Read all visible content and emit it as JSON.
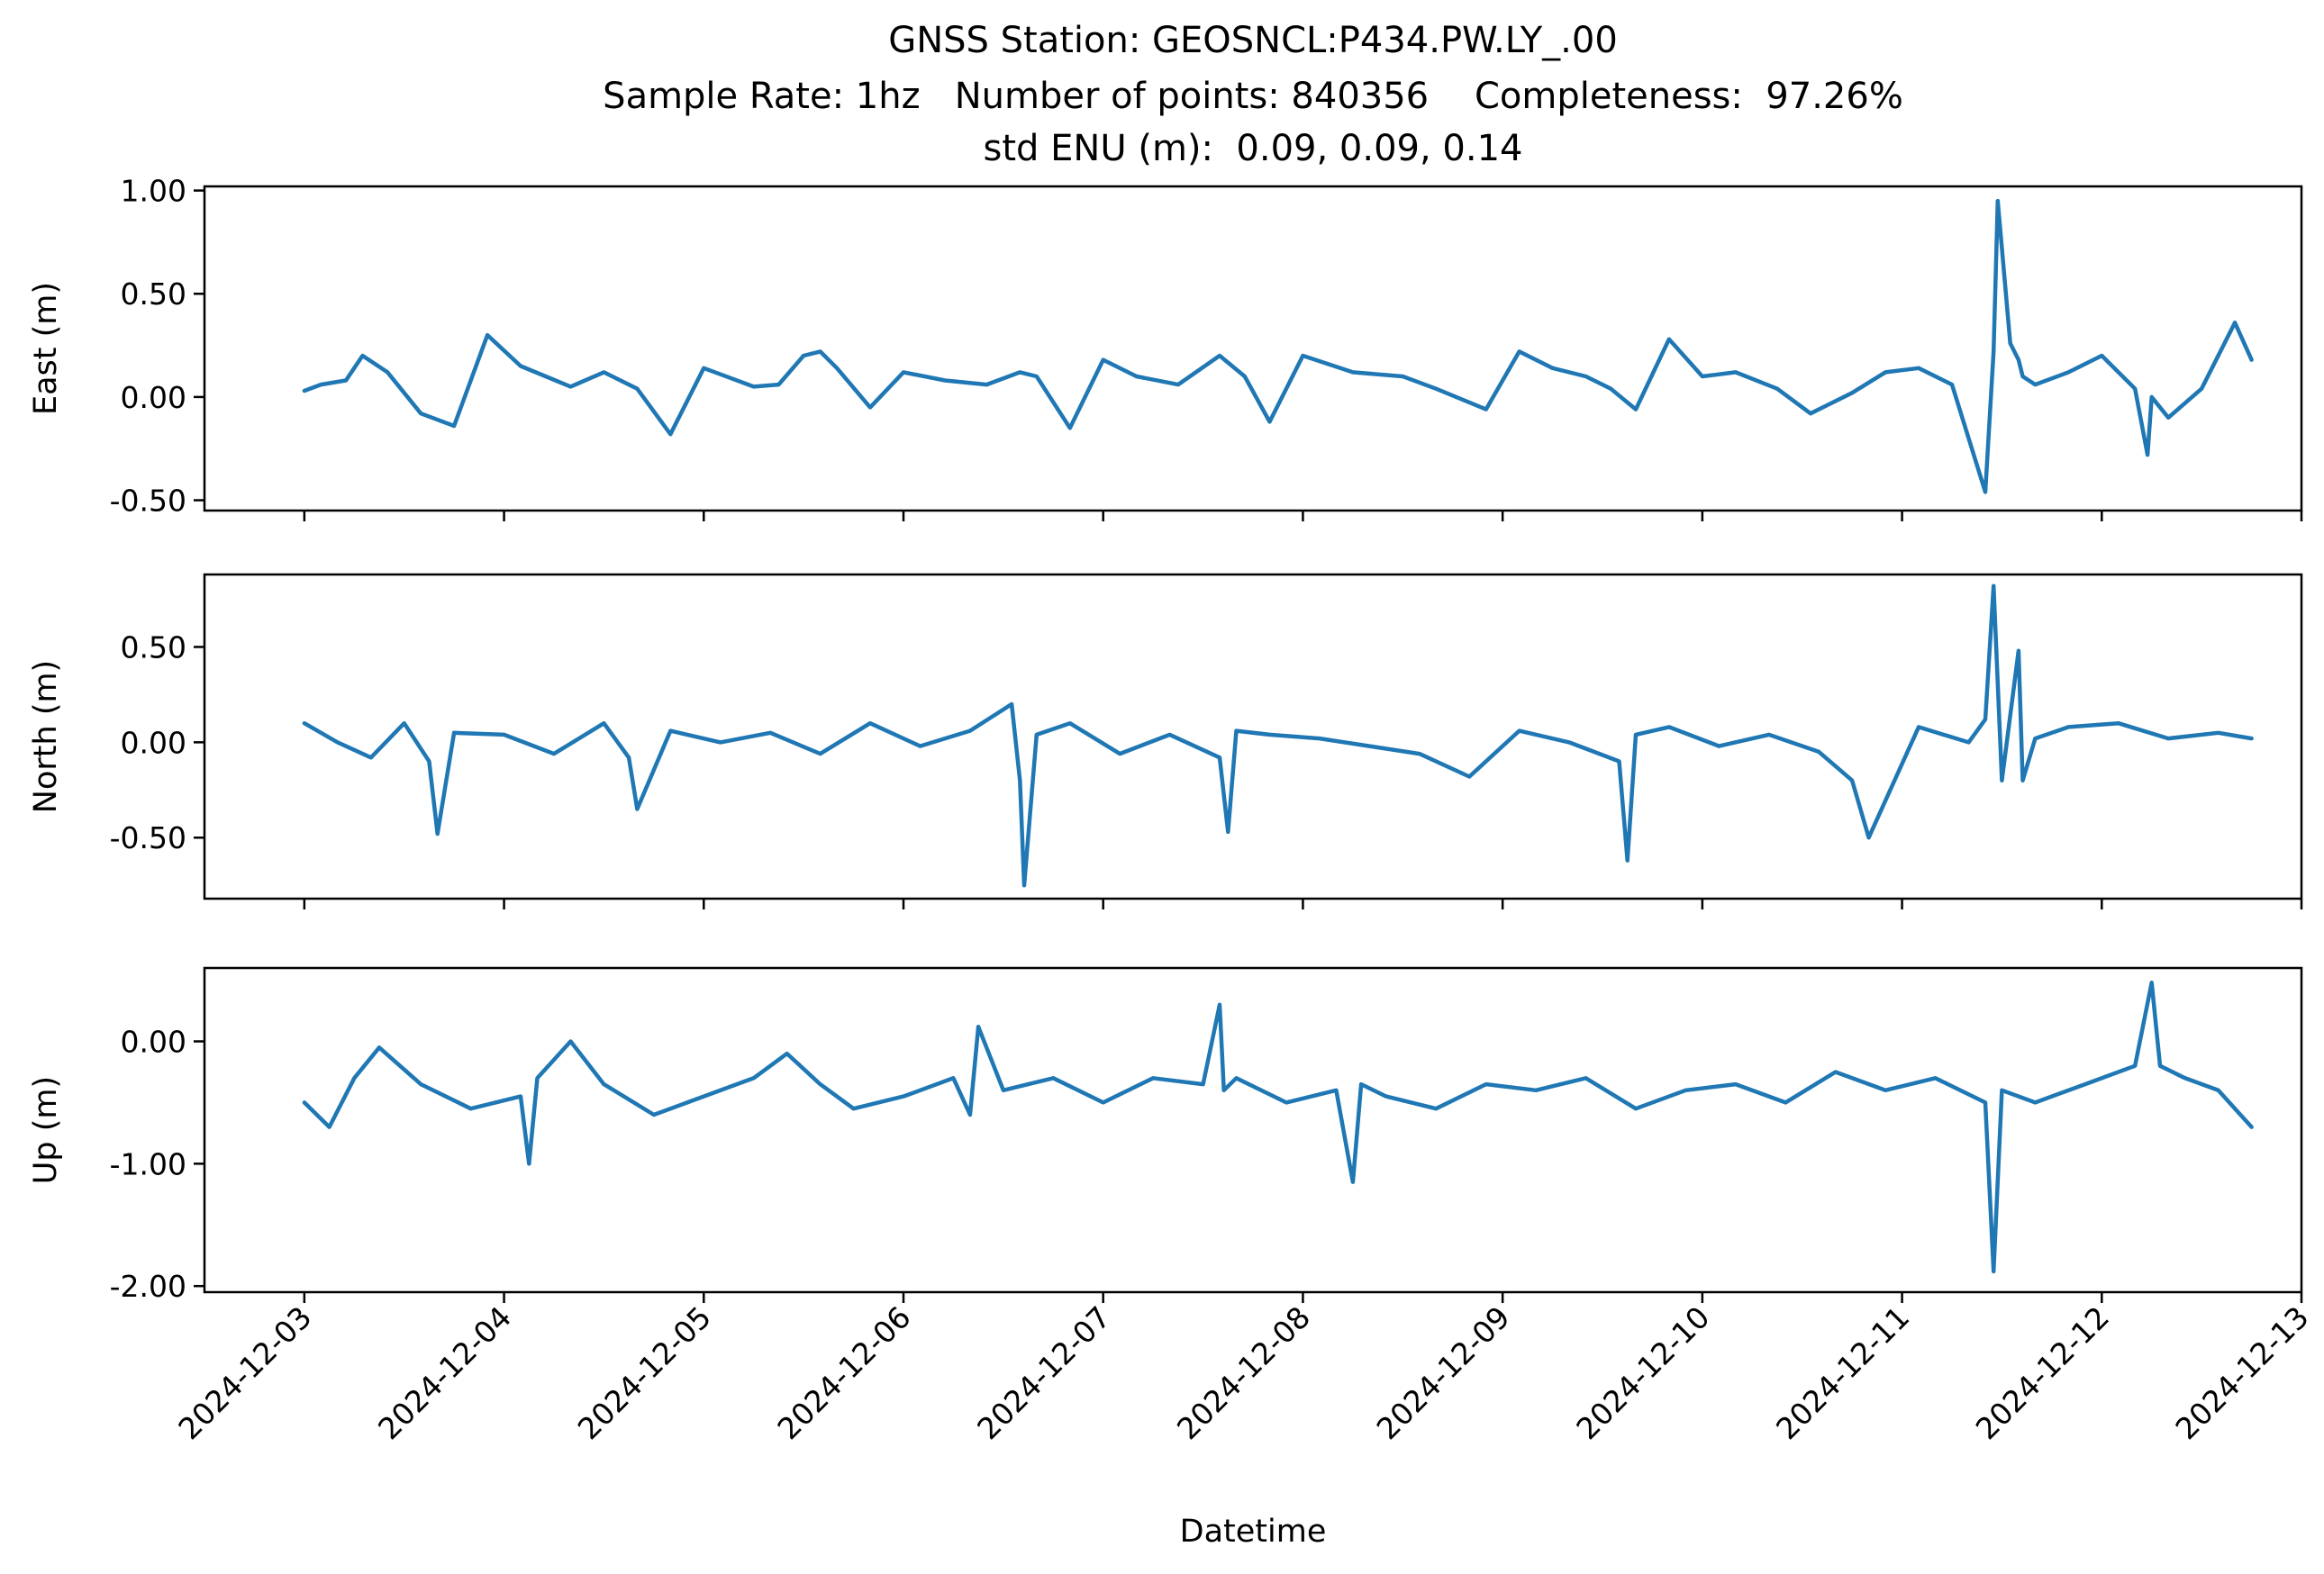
{
  "chart_data": {
    "type": "line",
    "title_lines": [
      "GNSS Station: GEOSNCL:P434.PW.LY_.00",
      "Sample Rate: 1hz   Number of points: 840356    Completeness:  97.26%",
      "std ENU (m):  0.09, 0.09, 0.14"
    ],
    "xlabel": "Datetime",
    "x_ticks": [
      "2024-12-03",
      "2024-12-04",
      "2024-12-05",
      "2024-12-06",
      "2024-12-07",
      "2024-12-08",
      "2024-12-09",
      "2024-12-10",
      "2024-12-11",
      "2024-12-12",
      "2024-12-13"
    ],
    "x_range": [
      "2024-12-02T12:00",
      "2024-12-13T00:00"
    ],
    "color": "#1f77b4",
    "panels": [
      {
        "ylabel": "East (m)",
        "ylim": [
          -0.55,
          1.02
        ],
        "yticks": [
          1.0,
          0.5,
          0.0,
          -0.5
        ],
        "ytick_labels": [
          "1.00",
          "0.50",
          "0.00",
          "-0.50"
        ],
        "series": [
          {
            "x": [
              "2024-12-03T00:00",
              "2024-12-03T02:00",
              "2024-12-03T05:00",
              "2024-12-03T07:00",
              "2024-12-03T10:00",
              "2024-12-03T14:00",
              "2024-12-03T18:00",
              "2024-12-03T22:00",
              "2024-12-04T02:00",
              "2024-12-04T05:00",
              "2024-12-04T08:00",
              "2024-12-04T12:00",
              "2024-12-04T16:00",
              "2024-12-04T20:00",
              "2024-12-05T00:00",
              "2024-12-05T06:00",
              "2024-12-05T09:00",
              "2024-12-05T12:00",
              "2024-12-05T14:00",
              "2024-12-05T16:00",
              "2024-12-05T20:00",
              "2024-12-06T00:00",
              "2024-12-06T05:00",
              "2024-12-06T10:00",
              "2024-12-06T14:00",
              "2024-12-06T16:00",
              "2024-12-06T20:00",
              "2024-12-07T00:00",
              "2024-12-07T04:00",
              "2024-12-07T09:00",
              "2024-12-07T14:00",
              "2024-12-07T17:00",
              "2024-12-07T20:00",
              "2024-12-08T00:00",
              "2024-12-08T06:00",
              "2024-12-08T12:00",
              "2024-12-08T16:00",
              "2024-12-08T22:00",
              "2024-12-09T02:00",
              "2024-12-09T06:00",
              "2024-12-09T10:00",
              "2024-12-09T13:00",
              "2024-12-09T16:00",
              "2024-12-09T20:00",
              "2024-12-10T00:00",
              "2024-12-10T04:00",
              "2024-12-10T09:00",
              "2024-12-10T13:00",
              "2024-12-10T18:00",
              "2024-12-10T22:00",
              "2024-12-11T02:00",
              "2024-12-11T06:00",
              "2024-12-11T10:00",
              "2024-12-11T11:00",
              "2024-12-11T11:30",
              "2024-12-11T13:00",
              "2024-12-11T14:00",
              "2024-12-11T14:30",
              "2024-12-11T16:00",
              "2024-12-11T20:00",
              "2024-12-12T00:00",
              "2024-12-12T04:00",
              "2024-12-12T05:30",
              "2024-12-12T06:00",
              "2024-12-12T08:00",
              "2024-12-12T12:00",
              "2024-12-12T16:00",
              "2024-12-12T18:00"
            ],
            "y": [
              0.03,
              0.06,
              0.08,
              0.2,
              0.12,
              -0.08,
              -0.14,
              0.3,
              0.15,
              0.1,
              0.05,
              0.12,
              0.04,
              -0.18,
              0.14,
              0.05,
              0.06,
              0.2,
              0.22,
              0.14,
              -0.05,
              0.12,
              0.08,
              0.06,
              0.12,
              0.1,
              -0.15,
              0.18,
              0.1,
              0.06,
              0.2,
              0.1,
              -0.12,
              0.2,
              0.12,
              0.1,
              0.04,
              -0.06,
              0.22,
              0.14,
              0.1,
              0.04,
              -0.06,
              0.28,
              0.1,
              0.12,
              0.04,
              -0.08,
              0.02,
              0.12,
              0.14,
              0.06,
              -0.46,
              0.22,
              0.95,
              0.26,
              0.18,
              0.1,
              0.06,
              0.12,
              0.2,
              0.04,
              -0.28,
              0.0,
              -0.1,
              0.04,
              0.36,
              0.18
            ]
          }
        ]
      },
      {
        "ylabel": "North (m)",
        "ylim": [
          -0.82,
          0.88
        ],
        "yticks": [
          0.5,
          0.0,
          -0.5
        ],
        "ytick_labels": [
          "0.50",
          "0.00",
          "-0.50"
        ],
        "series": [
          {
            "x": [
              "2024-12-03T00:00",
              "2024-12-03T04:00",
              "2024-12-03T08:00",
              "2024-12-03T12:00",
              "2024-12-03T15:00",
              "2024-12-03T16:00",
              "2024-12-03T18:00",
              "2024-12-04T00:00",
              "2024-12-04T06:00",
              "2024-12-04T12:00",
              "2024-12-04T15:00",
              "2024-12-04T16:00",
              "2024-12-04T20:00",
              "2024-12-05T02:00",
              "2024-12-05T08:00",
              "2024-12-05T14:00",
              "2024-12-05T20:00",
              "2024-12-06T02:00",
              "2024-12-06T08:00",
              "2024-12-06T13:00",
              "2024-12-06T14:00",
              "2024-12-06T14:30",
              "2024-12-06T16:00",
              "2024-12-06T20:00",
              "2024-12-07T02:00",
              "2024-12-07T08:00",
              "2024-12-07T14:00",
              "2024-12-07T15:00",
              "2024-12-07T16:00",
              "2024-12-07T20:00",
              "2024-12-08T02:00",
              "2024-12-08T08:00",
              "2024-12-08T14:00",
              "2024-12-08T20:00",
              "2024-12-09T02:00",
              "2024-12-09T08:00",
              "2024-12-09T14:00",
              "2024-12-09T15:00",
              "2024-12-09T16:00",
              "2024-12-09T20:00",
              "2024-12-10T02:00",
              "2024-12-10T08:00",
              "2024-12-10T14:00",
              "2024-12-10T18:00",
              "2024-12-10T20:00",
              "2024-12-11T02:00",
              "2024-12-11T08:00",
              "2024-12-11T10:00",
              "2024-12-11T11:00",
              "2024-12-11T12:00",
              "2024-12-11T14:00",
              "2024-12-11T14:30",
              "2024-12-11T16:00",
              "2024-12-11T20:00",
              "2024-12-12T02:00",
              "2024-12-12T08:00",
              "2024-12-12T14:00",
              "2024-12-12T18:00"
            ],
            "y": [
              0.1,
              0.0,
              -0.08,
              0.1,
              -0.1,
              -0.48,
              0.05,
              0.04,
              -0.06,
              0.1,
              -0.08,
              -0.35,
              0.06,
              0.0,
              0.05,
              -0.06,
              0.1,
              -0.02,
              0.06,
              0.2,
              -0.2,
              -0.75,
              0.04,
              0.1,
              -0.06,
              0.04,
              -0.08,
              -0.47,
              0.06,
              0.04,
              0.02,
              -0.02,
              -0.06,
              -0.18,
              0.06,
              0.0,
              -0.1,
              -0.62,
              0.04,
              0.08,
              -0.02,
              0.04,
              -0.05,
              -0.2,
              -0.5,
              0.08,
              0.0,
              0.12,
              0.82,
              -0.2,
              0.48,
              -0.2,
              0.02,
              0.08,
              0.1,
              0.02,
              0.05,
              0.02
            ]
          }
        ]
      },
      {
        "ylabel": "Up (m)",
        "ylim": [
          -2.05,
          0.6
        ],
        "yticks": [
          0.0,
          -1.0,
          -2.0
        ],
        "ytick_labels": [
          "0.00",
          "-1.00",
          "-2.00"
        ],
        "series": [
          {
            "x": [
              "2024-12-03T00:00",
              "2024-12-03T03:00",
              "2024-12-03T06:00",
              "2024-12-03T09:00",
              "2024-12-03T14:00",
              "2024-12-03T20:00",
              "2024-12-04T02:00",
              "2024-12-04T03:00",
              "2024-12-04T04:00",
              "2024-12-04T08:00",
              "2024-12-04T12:00",
              "2024-12-04T18:00",
              "2024-12-05T00:00",
              "2024-12-05T06:00",
              "2024-12-05T10:00",
              "2024-12-05T14:00",
              "2024-12-05T18:00",
              "2024-12-06T00:00",
              "2024-12-06T06:00",
              "2024-12-06T08:00",
              "2024-12-06T09:00",
              "2024-12-06T12:00",
              "2024-12-06T18:00",
              "2024-12-07T00:00",
              "2024-12-07T06:00",
              "2024-12-07T12:00",
              "2024-12-07T14:00",
              "2024-12-07T14:30",
              "2024-12-07T16:00",
              "2024-12-07T22:00",
              "2024-12-08T04:00",
              "2024-12-08T06:00",
              "2024-12-08T07:00",
              "2024-12-08T10:00",
              "2024-12-08T16:00",
              "2024-12-08T22:00",
              "2024-12-09T04:00",
              "2024-12-09T10:00",
              "2024-12-09T16:00",
              "2024-12-09T22:00",
              "2024-12-10T04:00",
              "2024-12-10T10:00",
              "2024-12-10T16:00",
              "2024-12-10T22:00",
              "2024-12-11T04:00",
              "2024-12-11T10:00",
              "2024-12-11T11:00",
              "2024-12-11T12:00",
              "2024-12-11T16:00",
              "2024-12-11T22:00",
              "2024-12-12T04:00",
              "2024-12-12T06:00",
              "2024-12-12T07:00",
              "2024-12-12T10:00",
              "2024-12-12T14:00",
              "2024-12-12T18:00"
            ],
            "y": [
              -0.5,
              -0.7,
              -0.3,
              -0.05,
              -0.35,
              -0.55,
              -0.45,
              -1.0,
              -0.3,
              0.0,
              -0.35,
              -0.6,
              -0.45,
              -0.3,
              -0.1,
              -0.35,
              -0.55,
              -0.45,
              -0.3,
              -0.6,
              0.12,
              -0.4,
              -0.3,
              -0.5,
              -0.3,
              -0.35,
              0.3,
              -0.4,
              -0.3,
              -0.5,
              -0.4,
              -1.15,
              -0.35,
              -0.45,
              -0.55,
              -0.35,
              -0.4,
              -0.3,
              -0.55,
              -0.4,
              -0.35,
              -0.5,
              -0.25,
              -0.4,
              -0.3,
              -0.5,
              -1.88,
              -0.4,
              -0.5,
              -0.35,
              -0.2,
              0.48,
              -0.2,
              -0.3,
              -0.4,
              -0.7
            ]
          }
        ]
      }
    ]
  }
}
